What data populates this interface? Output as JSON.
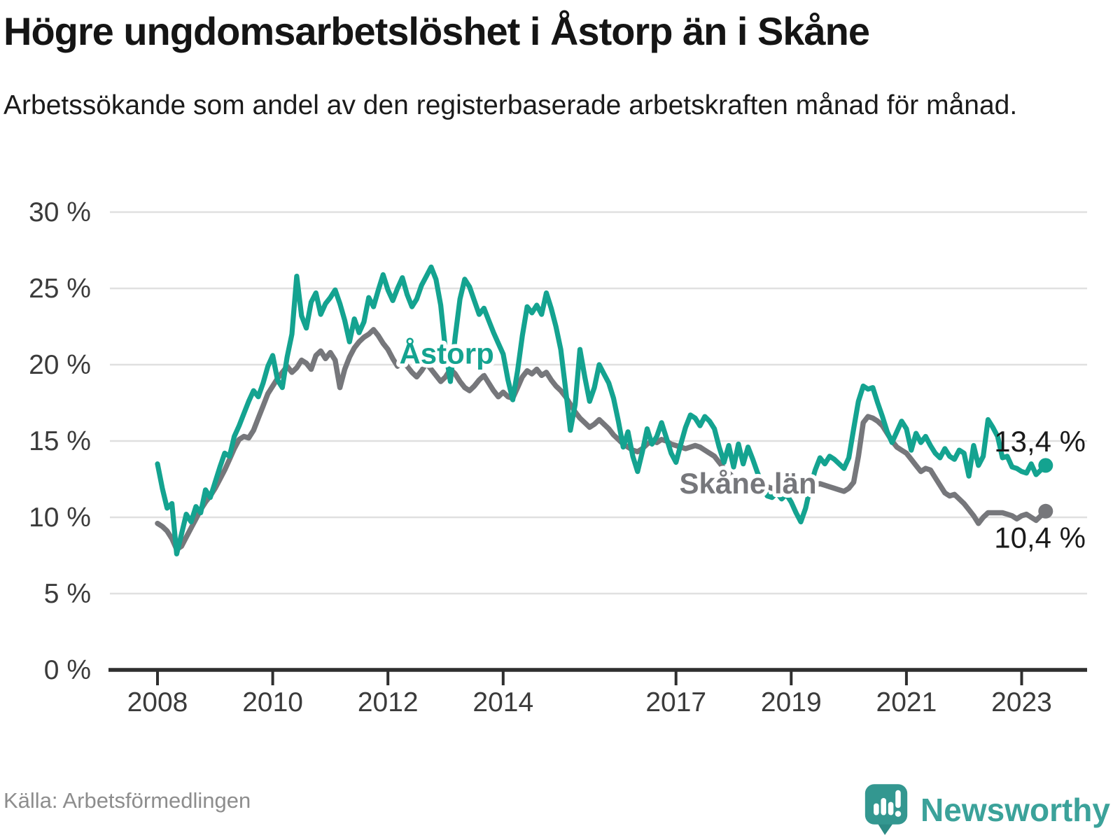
{
  "header": {
    "title": "Högre ungdomsarbetslöshet i Åstorp än i Skåne",
    "subtitle": "Arbetssökande som andel av den registerbaserade arbetskraften månad för månad."
  },
  "footer": {
    "source": "Källa: Arbetsförmedlingen",
    "brand": "Newsworthy",
    "brand_color": "#3BA29A",
    "brand_icon_color": "#339790",
    "brand_icon_tail_color": "#2C8B85"
  },
  "chart_data": {
    "type": "line",
    "title": "Högre ungdomsarbetslöshet i Åstorp än i Skåne",
    "xlabel": "",
    "ylabel": "",
    "grid": true,
    "grid_color": "#e0e0e0",
    "axis_color": "#2f2f2f",
    "tick_text_color": "#3b3b3b",
    "end_label_color": "#1a1a1a",
    "ylim": [
      0,
      30
    ],
    "x_domain_years": [
      2008,
      2023.95
    ],
    "y_axis": {
      "ticks": [
        {
          "value": 0,
          "label": "0 %"
        },
        {
          "value": 5,
          "label": "5 %"
        },
        {
          "value": 10,
          "label": "10 %"
        },
        {
          "value": 15,
          "label": "15 %"
        },
        {
          "value": 20,
          "label": "20 %"
        },
        {
          "value": 25,
          "label": "25 %"
        },
        {
          "value": 30,
          "label": "30 %"
        }
      ]
    },
    "x_axis": {
      "ticks": [
        {
          "year": 2008,
          "label": "2008"
        },
        {
          "year": 2010,
          "label": "2010"
        },
        {
          "year": 2012,
          "label": "2012"
        },
        {
          "year": 2014,
          "label": "2014"
        },
        {
          "year": 2017,
          "label": "2017"
        },
        {
          "year": 2019,
          "label": "2019"
        },
        {
          "year": 2021,
          "label": "2021"
        },
        {
          "year": 2023,
          "label": "2023"
        }
      ]
    },
    "frequency": "monthly",
    "start_year": 2008,
    "start_month": 1,
    "series": [
      {
        "name": "Skåne län",
        "color": "#76777B",
        "line_width": 7.5,
        "end_label": "10,4 %",
        "end_label_dy": 52,
        "end_dot": true,
        "inline_label": {
          "text": "Skåne län",
          "x": 2018.25,
          "y": 12.2
        },
        "values": [
          9.6,
          9.4,
          9.1,
          8.6,
          7.9,
          8.1,
          8.7,
          9.3,
          9.9,
          10.5,
          11.0,
          11.4,
          11.9,
          12.5,
          13.1,
          13.8,
          14.5,
          15.1,
          15.3,
          15.2,
          15.7,
          16.5,
          17.3,
          18.1,
          18.6,
          19.1,
          19.5,
          19.9,
          19.5,
          19.8,
          20.3,
          20.1,
          19.7,
          20.6,
          20.9,
          20.4,
          20.8,
          20.3,
          18.5,
          19.7,
          20.5,
          21.1,
          21.5,
          21.8,
          22.0,
          22.3,
          21.9,
          21.4,
          21.0,
          20.4,
          19.9,
          20.3,
          19.9,
          19.5,
          19.2,
          19.6,
          20.1,
          19.7,
          19.3,
          18.9,
          19.2,
          19.7,
          19.4,
          18.9,
          18.5,
          18.3,
          18.6,
          19.0,
          19.3,
          18.8,
          18.3,
          17.9,
          18.2,
          17.9,
          17.8,
          18.5,
          19.2,
          19.6,
          19.4,
          19.7,
          19.3,
          19.5,
          19.0,
          18.6,
          18.3,
          17.9,
          17.4,
          16.9,
          16.5,
          16.2,
          15.9,
          16.1,
          16.4,
          16.1,
          15.8,
          15.4,
          15.1,
          14.8,
          14.6,
          14.4,
          14.3,
          14.5,
          14.8,
          15.0,
          14.9,
          15.1,
          15.0,
          14.8,
          14.7,
          14.6,
          14.5,
          14.6,
          14.7,
          14.6,
          14.4,
          14.2,
          14.0,
          13.6,
          13.2,
          12.9,
          12.6,
          12.4,
          12.2,
          12.0,
          11.9,
          11.8,
          11.9,
          12.0,
          11.9,
          11.8,
          11.8,
          11.9,
          12.0,
          12.1,
          11.9,
          11.8,
          11.9,
          12.1,
          12.2,
          12.1,
          12.0,
          11.9,
          11.8,
          11.7,
          11.9,
          12.3,
          14.0,
          16.2,
          16.6,
          16.5,
          16.3,
          16.0,
          15.5,
          15.0,
          14.6,
          14.4,
          14.2,
          13.8,
          13.4,
          13.0,
          13.2,
          13.1,
          12.6,
          12.1,
          11.6,
          11.4,
          11.5,
          11.2,
          10.9,
          10.5,
          10.1,
          9.6,
          10.0,
          10.3,
          10.3,
          10.3,
          10.3,
          10.2,
          10.1,
          9.9,
          10.1,
          10.2,
          10.0,
          9.8,
          10.1,
          10.4
        ]
      },
      {
        "name": "Åstorp",
        "color": "#14A390",
        "line_width": 7.2,
        "end_label": "13,4 %",
        "end_label_dy": -20,
        "end_dot": true,
        "inline_label": {
          "text": "Åstorp",
          "x": 2013.02,
          "y": 20.7
        },
        "values": [
          13.5,
          11.9,
          10.6,
          10.9,
          7.6,
          8.9,
          10.2,
          9.7,
          10.7,
          10.3,
          11.8,
          11.3,
          12.3,
          13.3,
          14.2,
          14.0,
          15.3,
          16.0,
          16.8,
          17.6,
          18.3,
          17.9,
          18.8,
          19.9,
          20.6,
          19.0,
          18.5,
          20.5,
          22.0,
          25.8,
          23.2,
          22.4,
          24.1,
          24.7,
          23.3,
          24.0,
          24.4,
          24.9,
          24.0,
          22.9,
          21.5,
          23.0,
          22.1,
          22.8,
          24.4,
          23.8,
          24.9,
          25.9,
          24.9,
          24.2,
          25.0,
          25.7,
          24.6,
          23.8,
          24.3,
          25.2,
          25.8,
          26.4,
          25.6,
          23.9,
          20.9,
          18.9,
          21.8,
          24.3,
          25.6,
          25.1,
          24.2,
          23.3,
          23.7,
          22.9,
          22.1,
          21.4,
          20.7,
          19.0,
          17.7,
          19.6,
          21.9,
          23.8,
          23.4,
          23.9,
          23.3,
          24.7,
          23.7,
          22.5,
          21.0,
          18.4,
          15.7,
          17.4,
          21.0,
          19.2,
          17.6,
          18.5,
          20.0,
          19.4,
          18.8,
          17.8,
          16.3,
          14.6,
          15.6,
          14.0,
          13.0,
          14.3,
          15.8,
          14.8,
          15.3,
          16.2,
          15.2,
          14.2,
          13.6,
          14.8,
          15.9,
          16.7,
          16.5,
          16.0,
          16.6,
          16.3,
          15.8,
          14.6,
          13.6,
          14.7,
          13.3,
          14.8,
          13.5,
          14.6,
          13.8,
          12.9,
          12.2,
          11.4,
          11.3,
          11.6,
          11.2,
          11.5,
          11.0,
          10.3,
          9.7,
          10.6,
          12.0,
          13.1,
          13.9,
          13.5,
          14.0,
          13.8,
          13.5,
          13.2,
          13.9,
          15.8,
          17.6,
          18.6,
          18.4,
          18.5,
          17.5,
          16.6,
          15.6,
          14.9,
          15.6,
          16.3,
          15.8,
          14.4,
          15.5,
          14.9,
          15.3,
          14.7,
          14.2,
          13.9,
          14.5,
          14.0,
          13.8,
          14.4,
          14.2,
          12.7,
          14.7,
          13.4,
          14.0,
          16.4,
          15.9,
          15.3,
          13.9,
          14.0,
          13.3,
          13.2,
          13.0,
          12.9,
          13.5,
          12.8,
          13.1,
          13.4
        ]
      }
    ]
  }
}
